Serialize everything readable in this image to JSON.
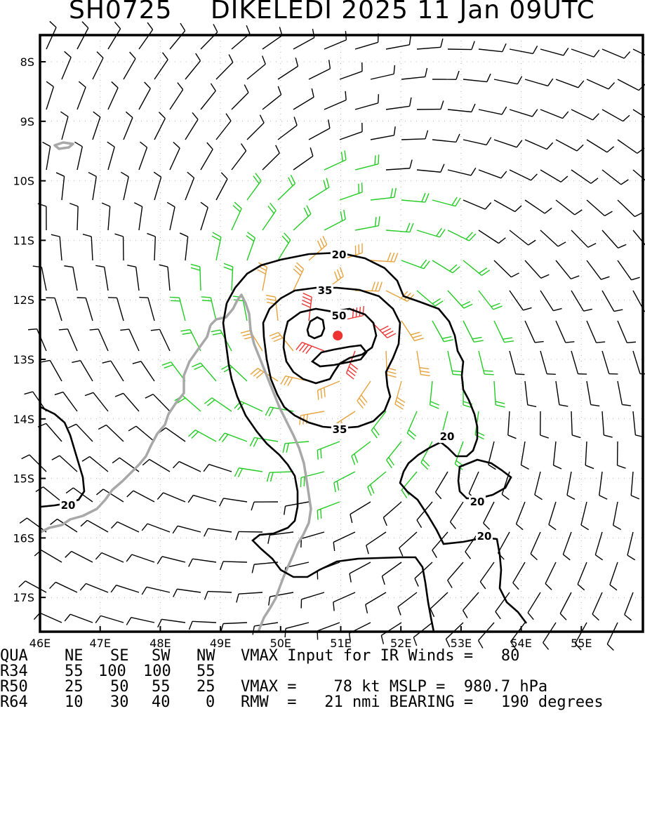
{
  "header": {
    "storm_id": "SH0725",
    "storm_name_time": "DIKELEDI 2025 11 Jan 09UTC"
  },
  "map": {
    "lat_labels": [
      "8S",
      "9S",
      "10S",
      "11S",
      "12S",
      "13S",
      "14S",
      "15S",
      "16S",
      "17S"
    ],
    "lon_labels": [
      "46E",
      "47E",
      "48E",
      "49E",
      "50E",
      "51E",
      "52E",
      "53E",
      "54E",
      "55E"
    ],
    "contour_labels": [
      "20",
      "35",
      "50",
      "35",
      "20",
      "20",
      "20",
      "20"
    ],
    "storm_center": {
      "lat": -12.6,
      "lon": 50.95
    },
    "colors": {
      "barb_lt34": "#000000",
      "barb_34_50": "#22cc22",
      "barb_50_64": "#e8a23c",
      "barb_ge64": "#ee3333",
      "coastline": "#a8a8a8",
      "contour": "#000000",
      "center_marker": "#ee3333"
    }
  },
  "table": {
    "headers": [
      "QUA",
      "NE",
      "SE",
      "SW",
      "NW"
    ],
    "rows": [
      {
        "label": "R34",
        "values": [
          "55",
          "100",
          "100",
          "55"
        ]
      },
      {
        "label": "R50",
        "values": [
          "25",
          "50",
          "55",
          "25"
        ]
      },
      {
        "label": "R64",
        "values": [
          "10",
          "30",
          "40",
          "0"
        ]
      }
    ],
    "info": {
      "vmax_input": "VMAX Input for IR Winds =   80",
      "vmax_mslp": "VMAX =    78 kt MSLP =  980.7 hPa",
      "rmw_bearing": "RMW  =   21 nmi BEARING =   190 degrees"
    }
  }
}
